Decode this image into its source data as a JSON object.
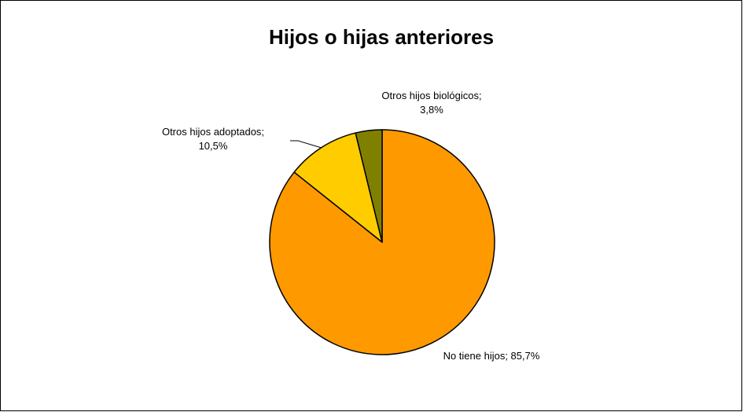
{
  "chart_data": {
    "type": "pie",
    "title": "Hijos o hijas anteriores",
    "categories": [
      "No tiene hijos",
      "Otros hijos adoptados",
      "Otros hijos biológicos"
    ],
    "values": [
      85.7,
      10.5,
      3.8
    ],
    "value_format": "percent",
    "colors": [
      "#FF9900",
      "#FFCC00",
      "#808000"
    ],
    "outline_color": "#000000",
    "start_angle_deg": 0,
    "direction": "clockwise",
    "data_labels": [
      {
        "lines": [
          "No tiene hijos; 85,7%"
        ]
      },
      {
        "lines": [
          "Otros hijos adoptados;",
          "10,5%"
        ]
      },
      {
        "lines": [
          "Otros hijos biológicos;",
          "3,8%"
        ]
      }
    ],
    "legend": "none"
  }
}
